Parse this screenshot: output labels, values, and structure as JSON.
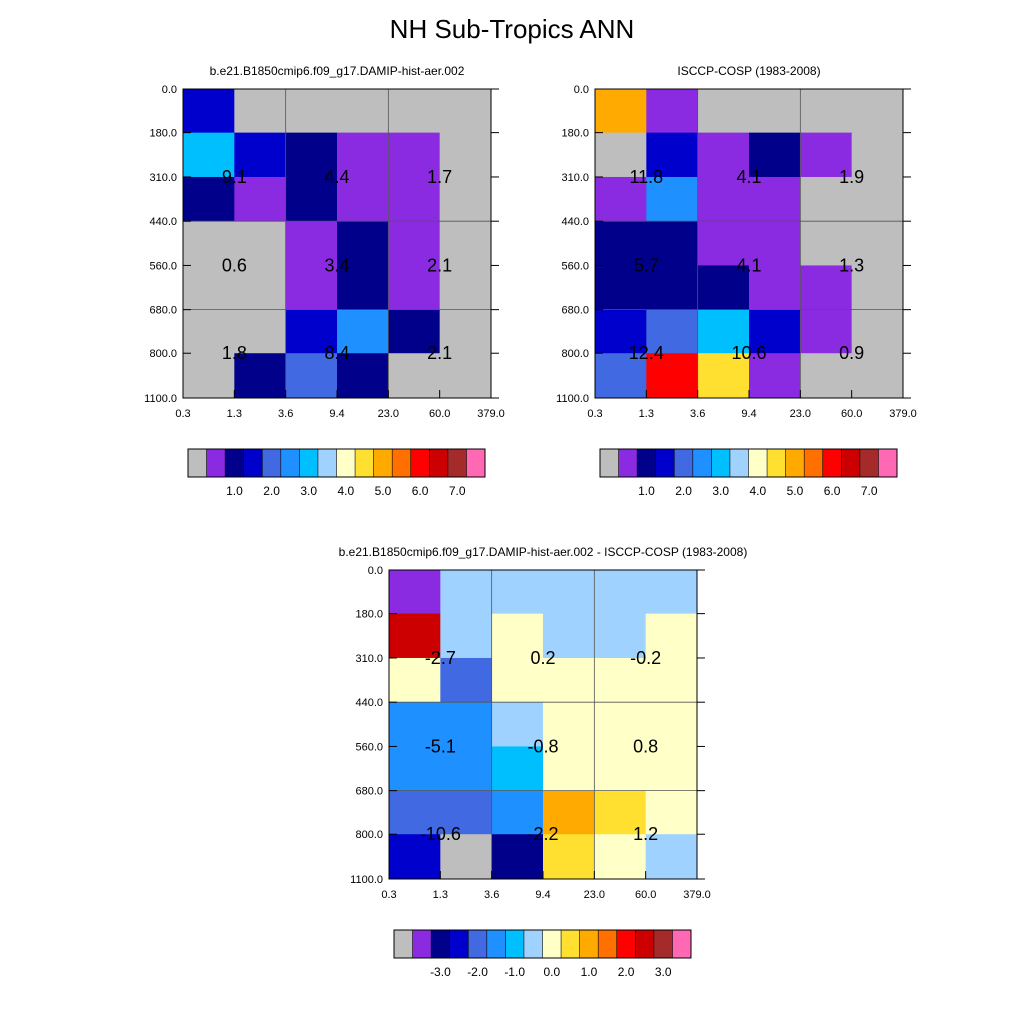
{
  "title": "NH Sub-Tropics ANN",
  "colors": {
    "grey": "#bebebe",
    "violet": "#8a2be2",
    "navy": "#00008b",
    "mediumblue": "#0000cd",
    "royalblue": "#4169e1",
    "dodger": "#1e90ff",
    "deepsky": "#00bfff",
    "lightsky": "#a0d2ff",
    "lightyellow": "#ffffc8",
    "gold": "#ffe030",
    "orange": "#ffaa00",
    "darkorange": "#ff7000",
    "red": "#ff0000",
    "crimson": "#cc0000",
    "darkred": "#a52a2a",
    "pink": "#ff69b4"
  },
  "chart_data": [
    {
      "type": "heatmap",
      "title": "b.e21.B1850cmip6.f09_g17.DAMIP-hist-aer.002",
      "x_ticks": [
        "0.3",
        "1.3",
        "3.6",
        "9.4",
        "23.0",
        "60.0",
        "379.0"
      ],
      "y_ticks": [
        "0.0",
        "180.0",
        "310.0",
        "440.0",
        "560.0",
        "680.0",
        "800.0",
        "1100.0"
      ],
      "xlabel": "",
      "ylabel": "",
      "cells": [
        [
          "mediumblue",
          "grey",
          "grey",
          "grey",
          "grey",
          "grey"
        ],
        [
          "deepsky",
          "mediumblue",
          "navy",
          "violet",
          "violet",
          "grey"
        ],
        [
          "navy",
          "violet",
          "navy",
          "violet",
          "violet",
          "grey"
        ],
        [
          "grey",
          "grey",
          "violet",
          "navy",
          "violet",
          "grey"
        ],
        [
          "grey",
          "grey",
          "violet",
          "navy",
          "violet",
          "grey"
        ],
        [
          "grey",
          "grey",
          "mediumblue",
          "dodger",
          "navy",
          "grey"
        ],
        [
          "grey",
          "navy",
          "royalblue",
          "navy",
          "grey",
          "grey"
        ]
      ],
      "labels": [
        {
          "text": "9.1",
          "x_bin": 0,
          "y_bin": 1
        },
        {
          "text": "4.4",
          "x_bin": 2,
          "y_bin": 1
        },
        {
          "text": "1.7",
          "x_bin": 4,
          "y_bin": 1
        },
        {
          "text": "0.6",
          "x_bin": 0,
          "y_bin": 3
        },
        {
          "text": "3.4",
          "x_bin": 2,
          "y_bin": 3
        },
        {
          "text": "2.1",
          "x_bin": 4,
          "y_bin": 3
        },
        {
          "text": "1.8",
          "x_bin": 0,
          "y_bin": 5
        },
        {
          "text": "8.4",
          "x_bin": 2,
          "y_bin": 5
        },
        {
          "text": "2.1",
          "x_bin": 4,
          "y_bin": 5
        }
      ],
      "colorbar": {
        "colors": [
          "grey",
          "violet",
          "navy",
          "mediumblue",
          "royalblue",
          "dodger",
          "deepsky",
          "lightsky",
          "lightyellow",
          "gold",
          "orange",
          "darkorange",
          "red",
          "crimson",
          "darkred",
          "pink"
        ],
        "labels": [
          "1.0",
          "2.0",
          "3.0",
          "4.0",
          "5.0",
          "6.0",
          "7.0"
        ]
      }
    },
    {
      "type": "heatmap",
      "title": "ISCCP-COSP (1983-2008)",
      "x_ticks": [
        "0.3",
        "1.3",
        "3.6",
        "9.4",
        "23.0",
        "60.0",
        "379.0"
      ],
      "y_ticks": [
        "0.0",
        "180.0",
        "310.0",
        "440.0",
        "560.0",
        "680.0",
        "800.0",
        "1100.0"
      ],
      "xlabel": "",
      "ylabel": "",
      "cells": [
        [
          "orange",
          "violet",
          "grey",
          "grey",
          "grey",
          "grey"
        ],
        [
          "grey",
          "mediumblue",
          "violet",
          "navy",
          "violet",
          "grey"
        ],
        [
          "violet",
          "dodger",
          "violet",
          "violet",
          "grey",
          "grey"
        ],
        [
          "navy",
          "navy",
          "violet",
          "violet",
          "grey",
          "grey"
        ],
        [
          "navy",
          "navy",
          "navy",
          "violet",
          "violet",
          "grey"
        ],
        [
          "mediumblue",
          "royalblue",
          "deepsky",
          "mediumblue",
          "violet",
          "grey"
        ],
        [
          "royalblue",
          "red",
          "gold",
          "violet",
          "grey",
          "grey"
        ]
      ],
      "labels": [
        {
          "text": "11.8",
          "x_bin": 0,
          "y_bin": 1
        },
        {
          "text": "4.1",
          "x_bin": 2,
          "y_bin": 1
        },
        {
          "text": "1.9",
          "x_bin": 4,
          "y_bin": 1
        },
        {
          "text": "5.7",
          "x_bin": 0,
          "y_bin": 3
        },
        {
          "text": "4.1",
          "x_bin": 2,
          "y_bin": 3
        },
        {
          "text": "1.3",
          "x_bin": 4,
          "y_bin": 3
        },
        {
          "text": "12.4",
          "x_bin": 0,
          "y_bin": 5
        },
        {
          "text": "10.6",
          "x_bin": 2,
          "y_bin": 5
        },
        {
          "text": "0.9",
          "x_bin": 4,
          "y_bin": 5
        }
      ],
      "colorbar": {
        "colors": [
          "grey",
          "violet",
          "navy",
          "mediumblue",
          "royalblue",
          "dodger",
          "deepsky",
          "lightsky",
          "lightyellow",
          "gold",
          "orange",
          "darkorange",
          "red",
          "crimson",
          "darkred",
          "pink"
        ],
        "labels": [
          "1.0",
          "2.0",
          "3.0",
          "4.0",
          "5.0",
          "6.0",
          "7.0"
        ]
      }
    },
    {
      "type": "heatmap",
      "title": "b.e21.B1850cmip6.f09_g17.DAMIP-hist-aer.002 - ISCCP-COSP (1983-2008)",
      "x_ticks": [
        "0.3",
        "1.3",
        "3.6",
        "9.4",
        "23.0",
        "60.0",
        "379.0"
      ],
      "y_ticks": [
        "0.0",
        "180.0",
        "310.0",
        "440.0",
        "560.0",
        "680.0",
        "800.0",
        "1100.0"
      ],
      "xlabel": "",
      "ylabel": "",
      "cells": [
        [
          "violet",
          "lightsky",
          "lightsky",
          "lightsky",
          "lightsky",
          "lightsky"
        ],
        [
          "crimson",
          "lightsky",
          "lightyellow",
          "lightsky",
          "lightsky",
          "lightyellow"
        ],
        [
          "lightyellow",
          "royalblue",
          "lightyellow",
          "lightyellow",
          "lightyellow",
          "lightyellow"
        ],
        [
          "dodger",
          "dodger",
          "lightsky",
          "lightyellow",
          "lightyellow",
          "lightyellow"
        ],
        [
          "dodger",
          "dodger",
          "deepsky",
          "lightyellow",
          "lightyellow",
          "lightyellow"
        ],
        [
          "royalblue",
          "royalblue",
          "dodger",
          "orange",
          "gold",
          "lightyellow"
        ],
        [
          "mediumblue",
          "grey",
          "navy",
          "gold",
          "lightyellow",
          "lightsky"
        ]
      ],
      "labels": [
        {
          "text": "-2.7",
          "x_bin": 0,
          "y_bin": 1
        },
        {
          "text": "0.2",
          "x_bin": 2,
          "y_bin": 1
        },
        {
          "text": "-0.2",
          "x_bin": 4,
          "y_bin": 1
        },
        {
          "text": "-5.1",
          "x_bin": 0,
          "y_bin": 3
        },
        {
          "text": "-0.8",
          "x_bin": 2,
          "y_bin": 3
        },
        {
          "text": "0.8",
          "x_bin": 4,
          "y_bin": 3
        },
        {
          "text": "-10.6",
          "x_bin": 0,
          "y_bin": 5
        },
        {
          "text": "-2.2",
          "x_bin": 2,
          "y_bin": 5
        },
        {
          "text": "1.2",
          "x_bin": 4,
          "y_bin": 5
        }
      ],
      "colorbar": {
        "colors": [
          "grey",
          "violet",
          "navy",
          "mediumblue",
          "royalblue",
          "dodger",
          "deepsky",
          "lightsky",
          "lightyellow",
          "gold",
          "orange",
          "darkorange",
          "red",
          "crimson",
          "darkred",
          "pink"
        ],
        "labels": [
          "-3.0",
          "-2.0",
          "-1.0",
          "0.0",
          "1.0",
          "2.0",
          "3.0"
        ]
      }
    }
  ]
}
